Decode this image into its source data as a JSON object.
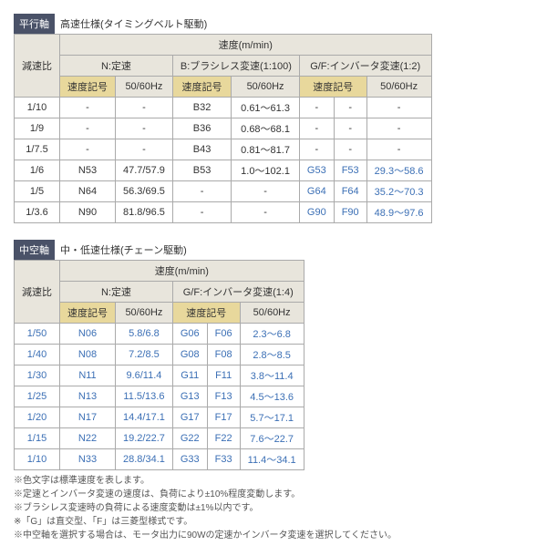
{
  "t1": {
    "barLabel": "平行軸",
    "barRest": "高速仕様(タイミングベルト駆動)",
    "h": {
      "ratio": "減速比",
      "speed": "速度(m/min)",
      "n": "N:定速",
      "b": "B:ブラシレス変速(1:100)",
      "gf": "G/F:インバータ変速(1:2)",
      "code": "速度記号",
      "hz": "50/60Hz"
    },
    "rows": [
      {
        "r": "1/10",
        "nc": "-",
        "nh": "-",
        "bc": "B32",
        "bh": "0.61～61.3",
        "g": "-",
        "f": "-",
        "gh": "-"
      },
      {
        "r": "1/9",
        "nc": "-",
        "nh": "-",
        "bc": "B36",
        "bh": "0.68～68.1",
        "g": "-",
        "f": "-",
        "gh": "-"
      },
      {
        "r": "1/7.5",
        "nc": "-",
        "nh": "-",
        "bc": "B43",
        "bh": "0.81～81.7",
        "g": "-",
        "f": "-",
        "gh": "-"
      },
      {
        "r": "1/6",
        "nc": "N53",
        "nh": "47.7/57.9",
        "bc": "B53",
        "bh": "1.0～102.1",
        "g": "G53",
        "f": "F53",
        "gh": "29.3～58.6"
      },
      {
        "r": "1/5",
        "nc": "N64",
        "nh": "56.3/69.5",
        "bc": "-",
        "bh": "-",
        "g": "G64",
        "f": "F64",
        "gh": "35.2～70.3"
      },
      {
        "r": "1/3.6",
        "nc": "N90",
        "nh": "81.8/96.5",
        "bc": "-",
        "bh": "-",
        "g": "G90",
        "f": "F90",
        "gh": "48.9～97.6"
      }
    ]
  },
  "t2": {
    "barLabel": "中空軸",
    "barRest": "中・低速仕様(チェーン駆動)",
    "h": {
      "ratio": "減速比",
      "speed": "速度(m/min)",
      "n": "N:定速",
      "gf": "G/F:インバータ変速(1:4)",
      "code": "速度記号",
      "hz": "50/60Hz"
    },
    "rows": [
      {
        "r": "1/50",
        "nc": "N06",
        "nh": "5.8/6.8",
        "g": "G06",
        "f": "F06",
        "gh": "2.3～6.8"
      },
      {
        "r": "1/40",
        "nc": "N08",
        "nh": "7.2/8.5",
        "g": "G08",
        "f": "F08",
        "gh": "2.8～8.5"
      },
      {
        "r": "1/30",
        "nc": "N11",
        "nh": "9.6/11.4",
        "g": "G11",
        "f": "F11",
        "gh": "3.8～11.4"
      },
      {
        "r": "1/25",
        "nc": "N13",
        "nh": "11.5/13.6",
        "g": "G13",
        "f": "F13",
        "gh": "4.5～13.6"
      },
      {
        "r": "1/20",
        "nc": "N17",
        "nh": "14.4/17.1",
        "g": "G17",
        "f": "F17",
        "gh": "5.7～17.1"
      },
      {
        "r": "1/15",
        "nc": "N22",
        "nh": "19.2/22.7",
        "g": "G22",
        "f": "F22",
        "gh": "7.6～22.7"
      },
      {
        "r": "1/10",
        "nc": "N33",
        "nh": "28.8/34.1",
        "g": "G33",
        "f": "F33",
        "gh": "11.4～34.1"
      }
    ]
  },
  "notes": [
    "※色文字は標準速度を表します。",
    "※定速とインバータ変速の速度は、負荷により±10%程度変動します。",
    "※ブラシレス変速時の負荷による速度変動は±1%以内です。",
    "※「G」は直交型、「F」は三菱型様式です。",
    "※中空軸を選択する場合は、モータ出力に90Wの定速かインバータ変速を選択してください。"
  ]
}
